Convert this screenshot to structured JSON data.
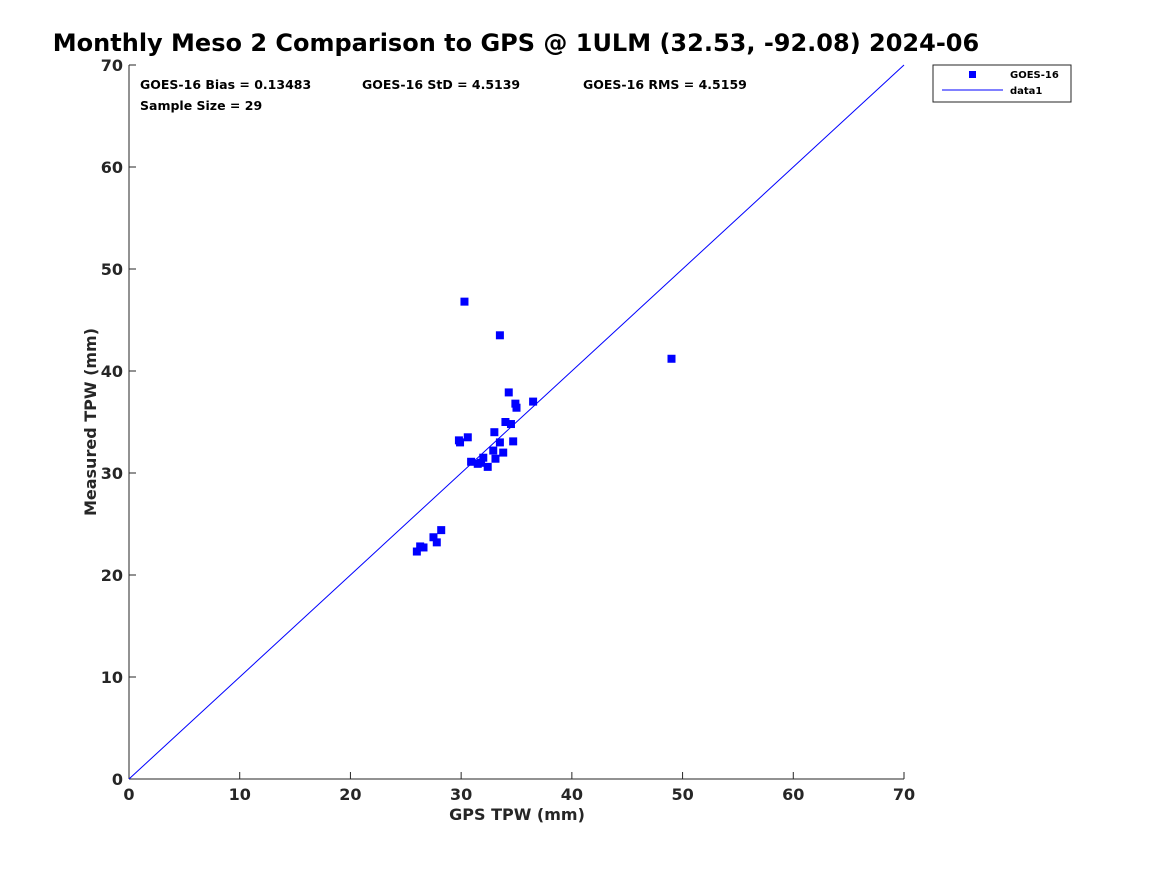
{
  "chart_data": {
    "type": "scatter",
    "title": "Monthly Meso 2 Comparison to GPS @ 1ULM (32.53, -92.08) 2024-06",
    "xlabel": "GPS TPW (mm)",
    "ylabel": "Measured TPW (mm)",
    "xlim": [
      0,
      70
    ],
    "ylim": [
      0,
      70
    ],
    "xticks": [
      "0",
      "10",
      "20",
      "30",
      "40",
      "50",
      "60",
      "70"
    ],
    "yticks": [
      "0",
      "10",
      "20",
      "30",
      "40",
      "50",
      "60",
      "70"
    ],
    "grid": false,
    "legend_position": "top-right-outside",
    "stats": {
      "bias": "GOES-16 Bias = 0.13483",
      "std": "GOES-16 StD = 4.5139",
      "rms": "GOES-16 RMS = 4.5159",
      "sample": "Sample Size = 29"
    },
    "series": [
      {
        "name": "GOES-16",
        "kind": "scatter",
        "marker": "square",
        "color": "#0000ff",
        "points": [
          [
            26.0,
            22.3
          ],
          [
            26.3,
            22.8
          ],
          [
            26.6,
            22.7
          ],
          [
            27.5,
            23.7
          ],
          [
            27.8,
            23.2
          ],
          [
            28.2,
            24.4
          ],
          [
            29.8,
            33.2
          ],
          [
            29.9,
            33.0
          ],
          [
            30.3,
            46.8
          ],
          [
            30.6,
            33.5
          ],
          [
            30.9,
            31.1
          ],
          [
            31.5,
            30.9
          ],
          [
            31.8,
            31.0
          ],
          [
            32.0,
            31.5
          ],
          [
            32.4,
            30.6
          ],
          [
            32.9,
            32.2
          ],
          [
            33.0,
            34.0
          ],
          [
            33.1,
            31.4
          ],
          [
            33.5,
            43.5
          ],
          [
            33.5,
            33.0
          ],
          [
            33.8,
            32.0
          ],
          [
            34.0,
            35.0
          ],
          [
            34.3,
            37.9
          ],
          [
            34.5,
            34.8
          ],
          [
            34.7,
            33.1
          ],
          [
            34.9,
            36.8
          ],
          [
            35.0,
            36.4
          ],
          [
            36.5,
            37.0
          ],
          [
            49.0,
            41.2
          ]
        ]
      },
      {
        "name": "data1",
        "kind": "line",
        "color": "#0000ff",
        "points": [
          [
            0,
            0
          ],
          [
            70,
            70
          ]
        ]
      }
    ]
  }
}
